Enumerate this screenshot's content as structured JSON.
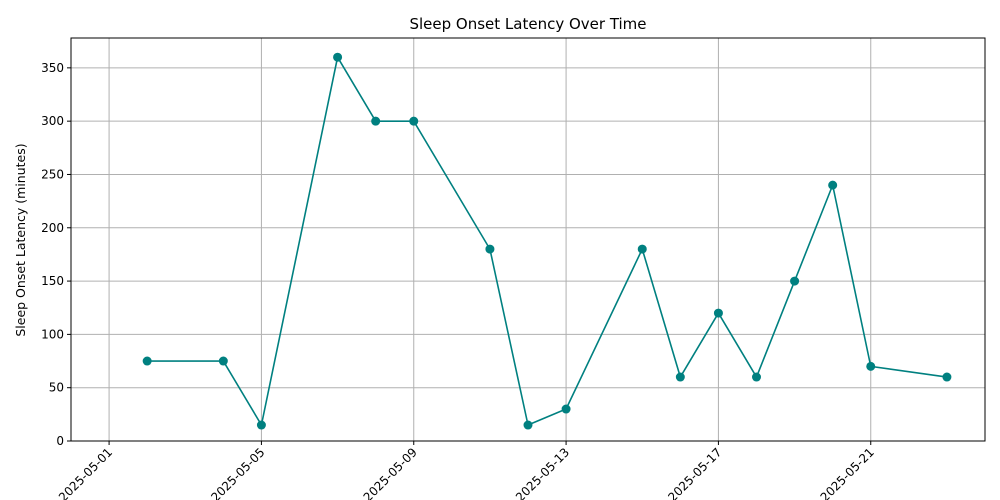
{
  "chart_data": {
    "type": "line",
    "title": "Sleep Onset Latency Over Time",
    "xlabel": "",
    "ylabel": "Sleep Onset Latency (minutes)",
    "x_ticks": [
      "2025-05-01",
      "2025-05-05",
      "2025-05-09",
      "2025-05-13",
      "2025-05-17",
      "2025-05-21"
    ],
    "y_ticks": [
      0,
      50,
      100,
      150,
      200,
      250,
      300,
      350
    ],
    "xlim": [
      "2025-04-30",
      "2025-05-24"
    ],
    "ylim": [
      0,
      378
    ],
    "grid": true,
    "series": [
      {
        "color": "#008080",
        "marker": "circle",
        "points": [
          {
            "x": "2025-05-02",
            "y": 75
          },
          {
            "x": "2025-05-04",
            "y": 75
          },
          {
            "x": "2025-05-05",
            "y": 15
          },
          {
            "x": "2025-05-07",
            "y": 360
          },
          {
            "x": "2025-05-08",
            "y": 300
          },
          {
            "x": "2025-05-09",
            "y": 300
          },
          {
            "x": "2025-05-11",
            "y": 180
          },
          {
            "x": "2025-05-12",
            "y": 15
          },
          {
            "x": "2025-05-13",
            "y": 30
          },
          {
            "x": "2025-05-15",
            "y": 180
          },
          {
            "x": "2025-05-16",
            "y": 60
          },
          {
            "x": "2025-05-17",
            "y": 120
          },
          {
            "x": "2025-05-18",
            "y": 60
          },
          {
            "x": "2025-05-19",
            "y": 150
          },
          {
            "x": "2025-05-20",
            "y": 240
          },
          {
            "x": "2025-05-21",
            "y": 70
          },
          {
            "x": "2025-05-23",
            "y": 60
          }
        ]
      }
    ]
  }
}
